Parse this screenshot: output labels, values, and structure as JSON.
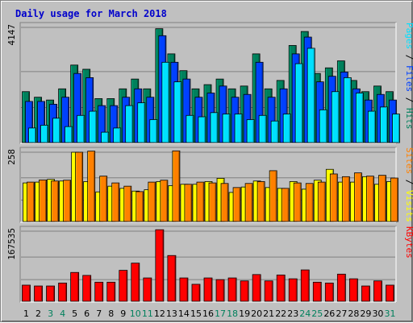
{
  "title": "Daily usage for March 2018",
  "day_label_colors": {
    "weekday": "#000000",
    "weekend": "#00805c"
  },
  "weekend_days": [
    3,
    4,
    10,
    11,
    17,
    18,
    24,
    25,
    31
  ],
  "chart_data": {
    "type": "bar",
    "title": "Daily usage for March 2018",
    "categories": [
      "1",
      "2",
      "3",
      "4",
      "5",
      "6",
      "7",
      "8",
      "9",
      "10",
      "11",
      "12",
      "13",
      "14",
      "15",
      "16",
      "17",
      "18",
      "19",
      "20",
      "21",
      "22",
      "23",
      "24",
      "25",
      "26",
      "27",
      "28",
      "29",
      "30",
      "31"
    ],
    "panels": [
      {
        "id": "hits_files_pages",
        "ymax_label": "4147",
        "ymax": 4147,
        "legend": [
          "Pages",
          "Files",
          "Hits"
        ],
        "legend_colors": [
          "#00e0ff",
          "#0040ff",
          "#00805c"
        ],
        "series": [
          {
            "name": "Hits",
            "color": "#00805c",
            "values": [
              1850,
              1650,
              1550,
              1950,
              2800,
              2650,
              1600,
              1600,
              1950,
              2300,
              1950,
              4100,
              3200,
              2600,
              1950,
              2100,
              2300,
              1950,
              2050,
              3200,
              1950,
              2250,
              3500,
              4000,
              2500,
              2700,
              2950,
              2250,
              1850,
              2050,
              1850
            ]
          },
          {
            "name": "Files",
            "color": "#0040ff",
            "values": [
              1500,
              1500,
              1400,
              1650,
              2500,
              2350,
              1350,
              1350,
              1650,
              1950,
              1650,
              3850,
              2900,
              2300,
              1650,
              1800,
              2050,
              1650,
              1750,
              2900,
              1650,
              1950,
              3200,
              3800,
              2200,
              2400,
              2550,
              1950,
              1550,
              1750,
              1550
            ]
          },
          {
            "name": "Pages",
            "color": "#00e0ff",
            "values": [
              550,
              650,
              900,
              600,
              1000,
              1150,
              400,
              550,
              1350,
              1450,
              850,
              2900,
              2200,
              1000,
              950,
              1100,
              1050,
              1050,
              850,
              1000,
              800,
              1050,
              2850,
              3400,
              1200,
              1850,
              2350,
              1800,
              1150,
              1300,
              1050
            ]
          }
        ]
      },
      {
        "id": "visits_sites",
        "ymax_label": "258",
        "ymax": 258,
        "legend": [
          "Sites",
          "Visits"
        ],
        "legend_colors": [
          "#ff8000",
          "#ffff00"
        ],
        "series": [
          {
            "name": "Visits",
            "color": "#ffff00",
            "values": [
              145,
              148,
              158,
              152,
              258,
              150,
              112,
              133,
              125,
              115,
              120,
              150,
              135,
              140,
              140,
              150,
              162,
              110,
              130,
              152,
              128,
              125,
              150,
              122,
              155,
              195,
              148,
              148,
              168,
              140,
              150
            ]
          },
          {
            "name": "Sites",
            "color": "#ff8000",
            "values": [
              148,
              156,
              152,
              155,
              258,
              262,
              170,
              145,
              133,
              113,
              148,
              155,
              263,
              140,
              148,
              145,
              143,
              128,
              143,
              150,
              190,
              125,
              145,
              143,
              148,
              178,
              168,
              182,
              170,
              173,
              163
            ]
          }
        ]
      },
      {
        "id": "kbytes",
        "ymax_label": "167535",
        "ymax": 167535,
        "legend": [
          "KBytes"
        ],
        "legend_colors": [
          "#ff0000"
        ],
        "series": [
          {
            "name": "KBytes",
            "color": "#ff0000",
            "values": [
              40000,
              38000,
              38000,
              45000,
              70000,
              63000,
              47000,
              47000,
              75000,
              92000,
              57000,
              171000,
              110000,
              57000,
              42000,
              57000,
              53000,
              57000,
              50000,
              65000,
              50000,
              64000,
              55000,
              76000,
              47000,
              45000,
              66000,
              55000,
              38000,
              50000,
              40000
            ]
          }
        ]
      }
    ]
  }
}
